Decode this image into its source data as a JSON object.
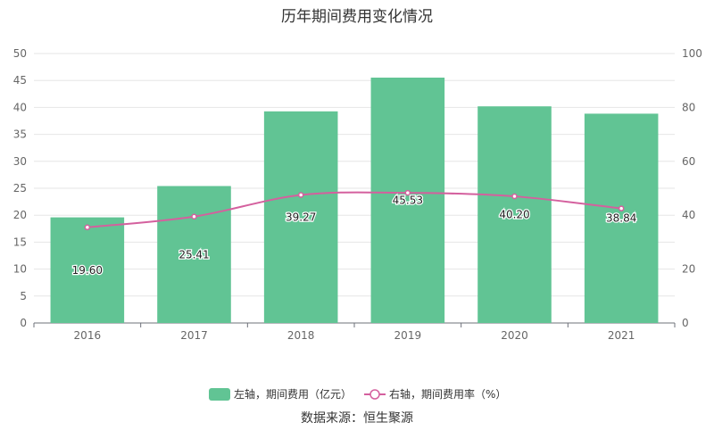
{
  "chart_data": {
    "type": "bar",
    "title": "历年期间费用变化情况",
    "categories": [
      "2016",
      "2017",
      "2018",
      "2019",
      "2020",
      "2021"
    ],
    "series": [
      {
        "name": "左轴，期间费用（亿元）",
        "type": "bar",
        "axis": "left",
        "color": "#61c494",
        "values": [
          19.6,
          25.41,
          39.27,
          45.53,
          40.2,
          38.84
        ],
        "labels": [
          "19.60",
          "25.41",
          "39.27",
          "45.53",
          "40.20",
          "38.84"
        ]
      },
      {
        "name": "右轴，期间费用率（%）",
        "type": "line",
        "axis": "right",
        "color": "#d4609e",
        "values": [
          35.5,
          39.5,
          47.5,
          48.3,
          47.0,
          42.5
        ]
      }
    ],
    "y_left": {
      "min": 0,
      "max": 50,
      "ticks": [
        0,
        5,
        10,
        15,
        20,
        25,
        30,
        35,
        40,
        45,
        50
      ]
    },
    "y_right": {
      "min": 0,
      "max": 100,
      "ticks": [
        0,
        20,
        40,
        60,
        80,
        100
      ]
    },
    "grid": true,
    "legend_position": "bottom"
  },
  "source_text": "数据来源：恒生聚源"
}
